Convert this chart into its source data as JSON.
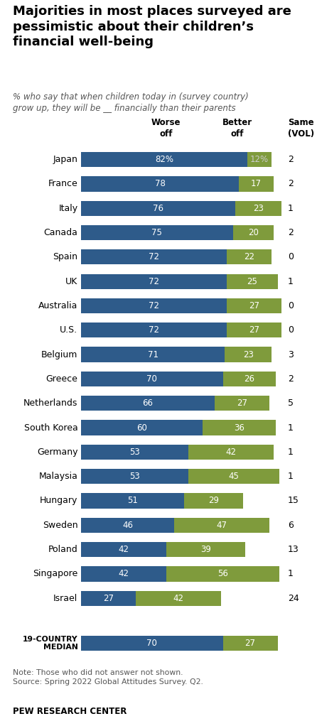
{
  "title": "Majorities in most places surveyed are\npessimistic about their children’s\nfinancial well-being",
  "subtitle": "% who say that when children today in (survey country)\ngrow up, they will be __ financially than their parents",
  "countries": [
    "Japan",
    "France",
    "Italy",
    "Canada",
    "Spain",
    "UK",
    "Australia",
    "U.S.",
    "Belgium",
    "Greece",
    "Netherlands",
    "South Korea",
    "Germany",
    "Malaysia",
    "Hungary",
    "Sweden",
    "Poland",
    "Singapore",
    "Israel"
  ],
  "worse": [
    82,
    78,
    76,
    75,
    72,
    72,
    72,
    72,
    71,
    70,
    66,
    60,
    53,
    53,
    51,
    46,
    42,
    42,
    27
  ],
  "better": [
    12,
    17,
    23,
    20,
    22,
    25,
    27,
    27,
    23,
    26,
    27,
    36,
    42,
    45,
    29,
    47,
    39,
    56,
    42
  ],
  "same": [
    2,
    2,
    1,
    2,
    0,
    1,
    0,
    0,
    3,
    2,
    5,
    1,
    1,
    1,
    15,
    6,
    13,
    1,
    24
  ],
  "median_worse": 70,
  "median_better": 27,
  "worse_color": "#2E5B8A",
  "better_color": "#7F9B3C",
  "note": "Note: Those who did not answer not shown.\nSource: Spring 2022 Global Attitudes Survey. Q2.",
  "footer": "PEW RESEARCH CENTER",
  "bar_max": 100,
  "bar_height": 0.62,
  "country_fontsize": 9,
  "label_fontsize": 8.5,
  "header_fontsize": 8.5,
  "title_fontsize": 13,
  "subtitle_fontsize": 8.5,
  "note_fontsize": 7.8,
  "footer_fontsize": 8.5
}
